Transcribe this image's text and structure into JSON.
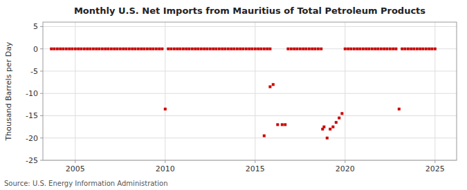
{
  "chart_data": {
    "type": "scatter",
    "title": "Monthly U.S. Net Imports from Mauritius of Total Petroleum Products",
    "ylabel": "Thousand Barrels per Day",
    "annotations": [
      "Source: U.S. Energy Information Administration"
    ],
    "color": "#cc0000",
    "marker": "square",
    "grid": true,
    "xlim": [
      2003.2,
      2026.2
    ],
    "ylim": [
      -25,
      6
    ],
    "xticks": [
      2005,
      2010,
      2015,
      2020,
      2025
    ],
    "yticks": [
      -25,
      -20,
      -15,
      -10,
      -5,
      0,
      5
    ],
    "x": [
      2003.67,
      2003.83,
      2004.0,
      2004.17,
      2004.33,
      2004.5,
      2004.67,
      2004.83,
      2005.0,
      2005.17,
      2005.33,
      2005.5,
      2005.67,
      2005.83,
      2006.0,
      2006.17,
      2006.33,
      2006.5,
      2006.67,
      2006.83,
      2007.0,
      2007.17,
      2007.33,
      2007.5,
      2007.67,
      2007.83,
      2008.0,
      2008.17,
      2008.33,
      2008.5,
      2008.67,
      2008.83,
      2009.0,
      2009.17,
      2009.33,
      2009.5,
      2009.67,
      2009.83,
      2010.0,
      2010.17,
      2010.33,
      2010.5,
      2010.67,
      2010.83,
      2011.0,
      2011.17,
      2011.33,
      2011.5,
      2011.67,
      2011.83,
      2012.0,
      2012.17,
      2012.33,
      2012.5,
      2012.67,
      2012.83,
      2013.0,
      2013.17,
      2013.33,
      2013.5,
      2013.67,
      2013.83,
      2014.0,
      2014.17,
      2014.33,
      2014.5,
      2014.67,
      2014.83,
      2015.0,
      2015.17,
      2015.33,
      2015.5,
      2015.67,
      2015.83,
      2015.5,
      2015.83,
      2016.0,
      2016.25,
      2016.5,
      2016.67,
      2016.83,
      2017.0,
      2017.17,
      2017.33,
      2017.5,
      2017.67,
      2017.83,
      2018.0,
      2018.17,
      2018.33,
      2018.5,
      2018.67,
      2018.75,
      2018.83,
      2019.0,
      2019.17,
      2019.33,
      2019.5,
      2019.67,
      2019.83,
      2020.0,
      2020.17,
      2020.33,
      2020.5,
      2020.67,
      2020.83,
      2021.0,
      2021.17,
      2021.33,
      2021.5,
      2021.67,
      2021.83,
      2022.0,
      2022.17,
      2022.33,
      2022.5,
      2022.67,
      2022.83,
      2023.0,
      2023.17,
      2023.33,
      2023.5,
      2023.67,
      2023.83,
      2024.0,
      2024.17,
      2024.33,
      2024.5,
      2024.67,
      2024.83,
      2025.0
    ],
    "values": [
      0,
      0,
      0,
      0,
      0,
      0,
      0,
      0,
      0,
      0,
      0,
      0,
      0,
      0,
      0,
      0,
      0,
      0,
      0,
      0,
      0,
      0,
      0,
      0,
      0,
      0,
      0,
      0,
      0,
      0,
      0,
      0,
      0,
      0,
      0,
      0,
      0,
      0,
      -13.5,
      0,
      0,
      0,
      0,
      0,
      0,
      0,
      0,
      0,
      0,
      0,
      0,
      0,
      0,
      0,
      0,
      0,
      0,
      0,
      0,
      0,
      0,
      0,
      0,
      0,
      0,
      0,
      0,
      0,
      0,
      0,
      0,
      0,
      0,
      0,
      -19.5,
      -8.5,
      -8.0,
      -17.0,
      -17.0,
      -17.0,
      0,
      0,
      0,
      0,
      0,
      0,
      0,
      0,
      0,
      0,
      0,
      0,
      -18.0,
      -17.5,
      -20.0,
      -18.0,
      -17.5,
      -16.5,
      -15.5,
      -14.5,
      0,
      0,
      0,
      0,
      0,
      0,
      0,
      0,
      0,
      0,
      0,
      0,
      0,
      0,
      0,
      0,
      0,
      0,
      -13.5,
      0,
      0,
      0,
      0,
      0,
      0,
      0,
      0,
      0,
      0,
      0,
      0
    ]
  }
}
